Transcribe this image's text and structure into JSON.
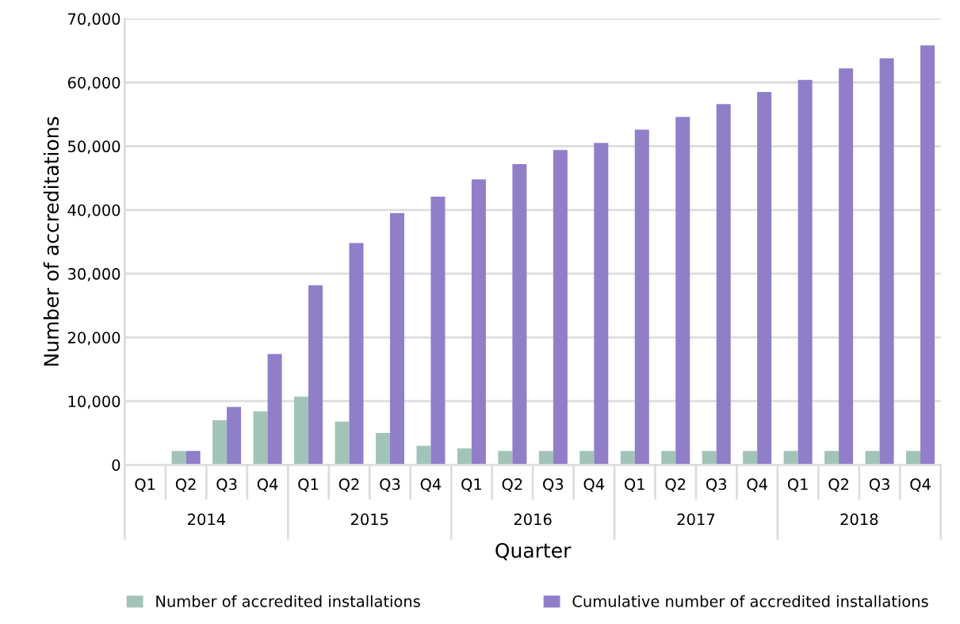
{
  "chart_data": {
    "type": "bar",
    "xlabel": "Quarter",
    "ylabel": "Number of accreditations",
    "categories": [
      "Q1",
      "Q2",
      "Q3",
      "Q4",
      "Q1",
      "Q2",
      "Q3",
      "Q4",
      "Q1",
      "Q2",
      "Q3",
      "Q4",
      "Q1",
      "Q2",
      "Q3",
      "Q4",
      "Q1",
      "Q2",
      "Q3",
      "Q4"
    ],
    "annotations": [
      "2014",
      "2015",
      "2016",
      "2017",
      "2018"
    ],
    "series": [
      {
        "name": "Number of accredited installations",
        "color": "#a2c4b8",
        "values": [
          0,
          2200,
          7000,
          8400,
          10700,
          6800,
          5000,
          3000,
          2600,
          2200,
          2200,
          2200,
          2200,
          2200,
          2200,
          2200,
          2200,
          2200,
          2200,
          2200
        ]
      },
      {
        "name": "Cumulative number of accredited installations",
        "color": "#907ec9",
        "values": [
          0,
          2200,
          9100,
          17400,
          28200,
          34800,
          39500,
          42100,
          44800,
          47200,
          49400,
          50500,
          52600,
          54600,
          56600,
          58500,
          60400,
          62200,
          63800,
          65800
        ]
      }
    ],
    "ylim": [
      0,
      70000
    ],
    "yticks": [
      {
        "value": 0,
        "label": "0"
      },
      {
        "value": 10000,
        "label": "10,000"
      },
      {
        "value": 20000,
        "label": "20,000"
      },
      {
        "value": 30000,
        "label": "30,000"
      },
      {
        "value": 40000,
        "label": "40,000"
      },
      {
        "value": 50000,
        "label": "50,000"
      },
      {
        "value": 60000,
        "label": "60,000"
      },
      {
        "value": 70000,
        "label": "70,000"
      }
    ],
    "grid": "y",
    "legend": "bottom"
  }
}
